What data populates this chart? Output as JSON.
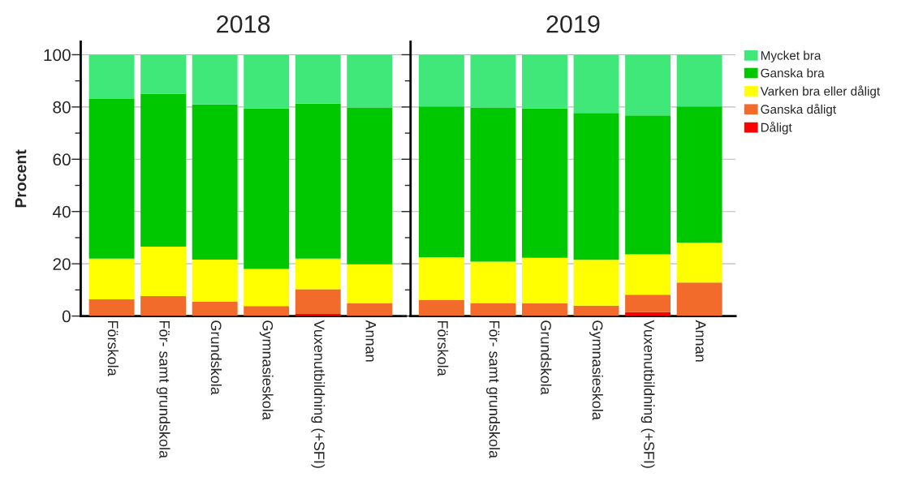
{
  "chart_data": [
    {
      "type": "bar",
      "stacked": true,
      "title": "2018",
      "ylabel": "Procent",
      "categories": [
        "Förskola",
        "För- samt grundskola",
        "Grundskola",
        "Gymnasieskola",
        "Vuxenutbildning (+SFI)",
        "Annan"
      ],
      "series": [
        {
          "name": "Dåligt",
          "color": "#ff0000",
          "values": [
            0,
            0,
            0,
            0,
            0.8,
            0
          ]
        },
        {
          "name": "Ganska dåligt",
          "color": "#f26b2a",
          "values": [
            6.4,
            7.6,
            5.5,
            3.8,
            9.5,
            4.8
          ]
        },
        {
          "name": "Varken bra eller dåligt",
          "color": "#ffff00",
          "values": [
            15.6,
            19.0,
            16.1,
            14.2,
            11.7,
            15.0
          ]
        },
        {
          "name": "Ganska bra",
          "color": "#00c800",
          "values": [
            61.1,
            58.5,
            59.4,
            61.4,
            59.3,
            60.0
          ]
        },
        {
          "name": "Mycket bra",
          "color": "#40e87a",
          "values": [
            16.9,
            14.9,
            19.0,
            20.6,
            18.7,
            20.2
          ]
        }
      ],
      "ylim": [
        0,
        105
      ],
      "yticks": [
        0,
        {
          "value": 10,
          "label": null
        },
        20,
        {
          "value": 30,
          "label": null
        },
        40,
        {
          "value": 50,
          "label": null
        },
        60,
        {
          "value": 70,
          "label": null
        },
        80,
        {
          "value": 90,
          "label": null
        },
        100
      ],
      "grid": "y",
      "legend": "top right"
    },
    {
      "type": "bar",
      "stacked": true,
      "title": "2019",
      "categories": [
        "Förskola",
        "För- samt grundskola",
        "Grundskola",
        "Gymnasieskola",
        "Vuxenutbildning (+SFI)",
        "Annan"
      ],
      "series": [
        {
          "color": "#ff0000",
          "values": [
            0,
            0,
            0,
            0,
            1.5,
            0
          ]
        },
        {
          "color": "#f26b2a",
          "values": [
            6.1,
            5.0,
            4.9,
            4.0,
            6.7,
            12.8
          ]
        },
        {
          "color": "#ffff00",
          "values": [
            16.4,
            15.8,
            17.4,
            17.5,
            15.4,
            15.3
          ]
        },
        {
          "color": "#00c800",
          "values": [
            57.7,
            59.0,
            57.1,
            56.2,
            53.2,
            52.1
          ]
        },
        {
          "color": "#40e87a",
          "values": [
            19.8,
            20.2,
            20.6,
            22.3,
            23.2,
            19.8
          ]
        }
      ],
      "ylim": [
        0,
        105
      ],
      "yticks": [
        0,
        {
          "value": 10,
          "label": null
        },
        20,
        {
          "value": 30,
          "label": null
        },
        40,
        {
          "value": 50,
          "label": null
        },
        60,
        {
          "value": 70,
          "label": null
        },
        80,
        {
          "value": 90,
          "label": null
        },
        100
      ],
      "tick_labels": "x",
      "grid": "y"
    }
  ]
}
